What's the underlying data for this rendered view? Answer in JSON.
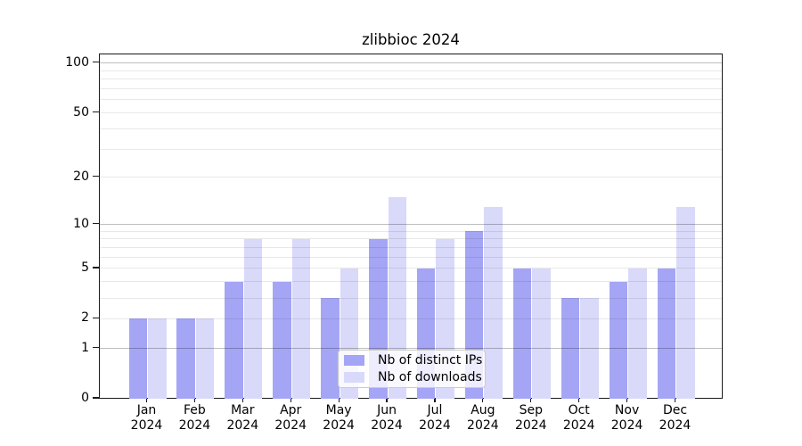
{
  "chart_data": {
    "type": "bar",
    "title": "zlibbioc 2024",
    "categories": [
      "Jan 2024",
      "Feb 2024",
      "Mar 2024",
      "Apr 2024",
      "May 2024",
      "Jun 2024",
      "Jul 2024",
      "Aug 2024",
      "Sep 2024",
      "Oct 2024",
      "Nov 2024",
      "Dec 2024"
    ],
    "series": [
      {
        "name": "Nb of distinct IPs",
        "color": "#a5a5f6",
        "values": [
          2,
          2,
          4,
          4,
          3,
          8,
          5,
          9,
          5,
          3,
          4,
          5
        ]
      },
      {
        "name": "Nb of downloads",
        "color": "#d9d9fa",
        "values": [
          2,
          2,
          8,
          8,
          5,
          15,
          8,
          13,
          5,
          3,
          5,
          13
        ]
      }
    ],
    "y_axis": {
      "scale": "log1p",
      "ticks": [
        0,
        1,
        2,
        5,
        10,
        20,
        50,
        100
      ],
      "minor_gridlines": [
        2,
        3,
        4,
        5,
        6,
        7,
        8,
        9,
        20,
        30,
        40,
        50,
        60,
        70,
        80,
        90
      ],
      "major_gridlines": [
        1,
        10,
        100
      ],
      "range": [
        0,
        113
      ],
      "grid": true
    },
    "xlabel": "",
    "ylabel": "",
    "legend_position": "bottom-center"
  }
}
